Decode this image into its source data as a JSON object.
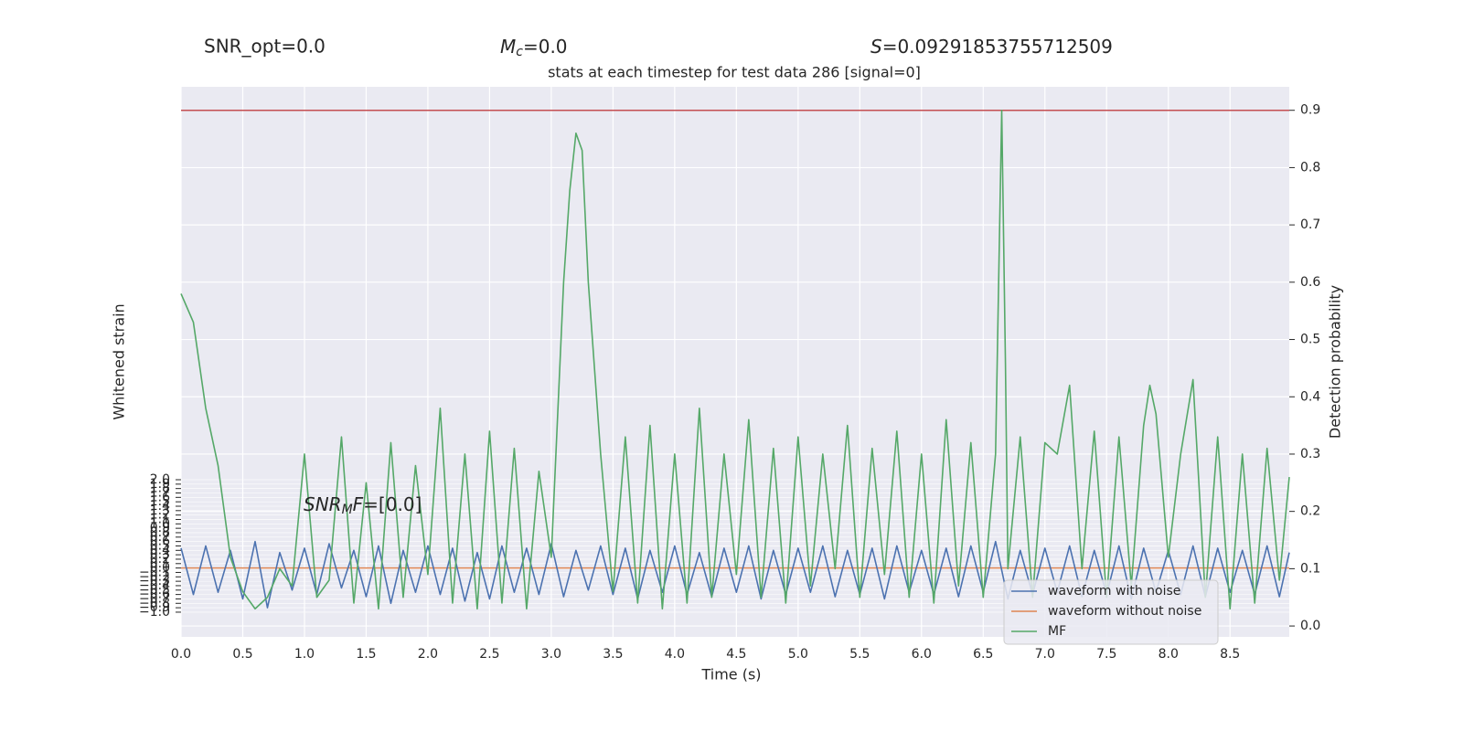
{
  "chart_data": {
    "type": "line",
    "title": "stats at each timestep for test data 286 [signal=0]",
    "annotations": {
      "snr_opt": "SNR_opt=0.0",
      "mc": {
        "symbol": "M",
        "subscript": "c",
        "rest": "=0.0"
      },
      "s": {
        "symbol": "S",
        "rest": "=0.09291853755712509"
      },
      "snr_mf": {
        "symbol": "SNR",
        "subscript": "M",
        "symbol2": "F",
        "rest": "=[0.0]"
      }
    },
    "x_label": "Time (s)",
    "y_label": "Whitened strain",
    "y2_label": "Detection probability",
    "grid": true,
    "legend": "lower right",
    "xlim": [
      0,
      8.98
    ],
    "xticks": [
      {
        "value": 0,
        "label": "0.0"
      },
      0.5,
      {
        "value": 1,
        "label": "1.0"
      },
      1.5,
      {
        "value": 2,
        "label": "2.0"
      },
      2.5,
      {
        "value": 3,
        "label": "3.0"
      },
      3.5,
      {
        "value": 4,
        "label": "4.0"
      },
      4.5,
      {
        "value": 5,
        "label": "5.0"
      },
      5.5,
      {
        "value": 6,
        "label": "6.0"
      },
      6.5,
      {
        "value": 7,
        "label": "7.0"
      },
      7.5,
      {
        "value": 8,
        "label": "8.0"
      },
      8.5
    ],
    "ylim": [
      -1.56,
      10.9
    ],
    "yticks": [
      {
        "value": -1,
        "label": "−1.0"
      },
      {
        "value": -0.9,
        "label": "−0.9"
      },
      {
        "value": -0.8,
        "label": "−0.8"
      },
      {
        "value": -0.7,
        "label": "−0.7"
      },
      {
        "value": -0.6,
        "label": "−0.6"
      },
      {
        "value": -0.5,
        "label": "−0.5"
      },
      {
        "value": -0.4,
        "label": "−0.4"
      },
      {
        "value": -0.3,
        "label": "−0.3"
      },
      {
        "value": -0.2,
        "label": "−0.2"
      },
      {
        "value": -0.1,
        "label": "−0.1"
      },
      {
        "value": 0,
        "label": "0.0"
      },
      0.1,
      0.2,
      0.3,
      0.4,
      0.5,
      0.6,
      0.7,
      0.8,
      0.9,
      {
        "value": 1,
        "label": "1.0"
      },
      1.1,
      1.2,
      1.3,
      1.4,
      1.5,
      1.6,
      1.7,
      1.8,
      1.9,
      {
        "value": 2,
        "label": "2.0"
      }
    ],
    "y2lim": [
      -0.019,
      0.941
    ],
    "y2ticks": [
      {
        "value": 0,
        "label": "0.0"
      },
      0.1,
      0.2,
      0.3,
      0.4,
      0.5,
      0.6,
      0.7,
      0.8,
      0.9
    ],
    "threshold_line": {
      "value": 0.9,
      "color": "#c44e52",
      "axis": "y2"
    },
    "series": [
      {
        "name": "waveform with noise",
        "color": "#4c72b0",
        "axis": "y",
        "x": [
          0,
          0.1,
          0.2,
          0.3,
          0.4,
          0.5,
          0.6,
          0.7,
          0.8,
          0.9,
          1.0,
          1.1,
          1.2,
          1.3,
          1.4,
          1.5,
          1.6,
          1.7,
          1.8,
          1.9,
          2.0,
          2.1,
          2.2,
          2.3,
          2.4,
          2.5,
          2.6,
          2.7,
          2.8,
          2.9,
          3.0,
          3.1,
          3.2,
          3.3,
          3.4,
          3.5,
          3.6,
          3.7,
          3.8,
          3.9,
          4.0,
          4.1,
          4.2,
          4.3,
          4.4,
          4.5,
          4.6,
          4.7,
          4.8,
          4.9,
          5.0,
          5.1,
          5.2,
          5.3,
          5.4,
          5.5,
          5.6,
          5.7,
          5.8,
          5.9,
          6.0,
          6.1,
          6.2,
          6.3,
          6.4,
          6.5,
          6.6,
          6.7,
          6.8,
          6.9,
          7.0,
          7.1,
          7.2,
          7.3,
          7.4,
          7.5,
          7.6,
          7.7,
          7.8,
          7.9,
          8.0,
          8.1,
          8.2,
          8.3,
          8.4,
          8.5,
          8.6,
          8.7,
          8.8,
          8.9,
          8.98
        ],
        "values": [
          0.45,
          -0.6,
          0.5,
          -0.55,
          0.4,
          -0.7,
          0.6,
          -0.9,
          0.35,
          -0.5,
          0.45,
          -0.6,
          0.55,
          -0.45,
          0.4,
          -0.65,
          0.5,
          -0.8,
          0.4,
          -0.55,
          0.5,
          -0.6,
          0.45,
          -0.75,
          0.35,
          -0.7,
          0.5,
          -0.55,
          0.45,
          -0.6,
          0.55,
          -0.65,
          0.4,
          -0.5,
          0.5,
          -0.6,
          0.45,
          -0.7,
          0.4,
          -0.55,
          0.5,
          -0.6,
          0.35,
          -0.65,
          0.45,
          -0.55,
          0.5,
          -0.7,
          0.4,
          -0.6,
          0.45,
          -0.55,
          0.5,
          -0.65,
          0.4,
          -0.6,
          0.45,
          -0.7,
          0.5,
          -0.55,
          0.4,
          -0.6,
          0.45,
          -0.65,
          0.5,
          -0.55,
          0.6,
          -0.7,
          0.4,
          -0.6,
          0.45,
          -0.55,
          0.5,
          -0.65,
          0.4,
          -0.6,
          0.5,
          -0.7,
          0.45,
          -0.55,
          0.4,
          -0.6,
          0.5,
          -0.65,
          0.45,
          -0.55,
          0.4,
          -0.6,
          0.5,
          -0.65,
          0.35
        ]
      },
      {
        "name": "waveform without noise",
        "color": "#dd8452",
        "axis": "y",
        "x": [
          0,
          8.98
        ],
        "values": [
          0,
          0
        ]
      },
      {
        "name": "MF",
        "color": "#55a868",
        "axis": "y2",
        "x": [
          0,
          0.1,
          0.2,
          0.3,
          0.4,
          0.5,
          0.6,
          0.7,
          0.8,
          0.9,
          1.0,
          1.1,
          1.2,
          1.3,
          1.4,
          1.5,
          1.6,
          1.7,
          1.8,
          1.9,
          2.0,
          2.1,
          2.2,
          2.3,
          2.4,
          2.5,
          2.6,
          2.7,
          2.8,
          2.9,
          3.0,
          3.1,
          3.15,
          3.2,
          3.25,
          3.3,
          3.4,
          3.5,
          3.6,
          3.7,
          3.8,
          3.9,
          4.0,
          4.1,
          4.2,
          4.3,
          4.4,
          4.5,
          4.6,
          4.7,
          4.8,
          4.9,
          5.0,
          5.1,
          5.2,
          5.3,
          5.4,
          5.5,
          5.6,
          5.7,
          5.8,
          5.9,
          6.0,
          6.1,
          6.2,
          6.3,
          6.4,
          6.5,
          6.6,
          6.65,
          6.68,
          6.7,
          6.8,
          6.9,
          7.0,
          7.1,
          7.2,
          7.3,
          7.4,
          7.5,
          7.6,
          7.7,
          7.8,
          7.85,
          7.9,
          8.0,
          8.1,
          8.2,
          8.3,
          8.4,
          8.5,
          8.6,
          8.7,
          8.8,
          8.9,
          8.98
        ],
        "values": [
          0.58,
          0.53,
          0.38,
          0.28,
          0.12,
          0.06,
          0.03,
          0.05,
          0.1,
          0.07,
          0.3,
          0.05,
          0.08,
          0.33,
          0.04,
          0.25,
          0.03,
          0.32,
          0.05,
          0.28,
          0.09,
          0.38,
          0.04,
          0.3,
          0.03,
          0.34,
          0.04,
          0.31,
          0.03,
          0.27,
          0.12,
          0.6,
          0.76,
          0.86,
          0.83,
          0.6,
          0.3,
          0.06,
          0.33,
          0.04,
          0.35,
          0.03,
          0.3,
          0.04,
          0.38,
          0.05,
          0.3,
          0.09,
          0.36,
          0.05,
          0.31,
          0.04,
          0.33,
          0.07,
          0.3,
          0.1,
          0.35,
          0.05,
          0.31,
          0.09,
          0.34,
          0.05,
          0.3,
          0.04,
          0.36,
          0.07,
          0.32,
          0.05,
          0.3,
          0.9,
          0.46,
          0.1,
          0.33,
          0.05,
          0.32,
          0.3,
          0.42,
          0.1,
          0.34,
          0.05,
          0.33,
          0.07,
          0.35,
          0.42,
          0.37,
          0.12,
          0.3,
          0.43,
          0.05,
          0.33,
          0.03,
          0.3,
          0.04,
          0.31,
          0.08,
          0.26
        ]
      }
    ]
  }
}
